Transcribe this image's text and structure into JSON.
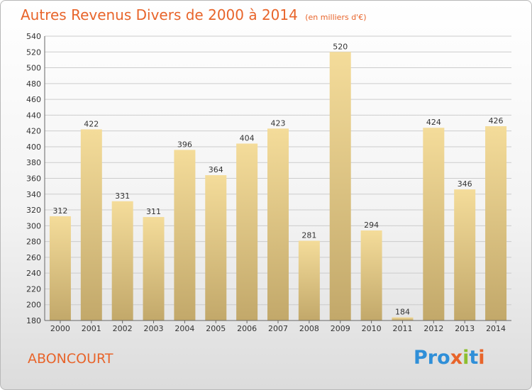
{
  "header": {
    "title": "Autres Revenus Divers de 2000 à 2014",
    "unit": "(en milliers d'€)"
  },
  "footer": {
    "place": "ABONCOURT",
    "logo": "Proxiti",
    "logo_colors": [
      "#2f8fd8",
      "#2f8fd8",
      "#2f8fd8",
      "#e8642a",
      "#8dbf2e",
      "#2f8fd8",
      "#e8642a"
    ]
  },
  "colors": {
    "accent": "#e8642a",
    "bar_light": "#f4dc9a",
    "bar_dark": "#c2a86a",
    "grid": "#cccccc"
  },
  "chart_data": {
    "type": "bar",
    "title": "Autres Revenus Divers de 2000 à 2014",
    "unit": "(en milliers d'€)",
    "categories": [
      "2000",
      "2001",
      "2002",
      "2003",
      "2004",
      "2005",
      "2006",
      "2007",
      "2008",
      "2009",
      "2010",
      "2011",
      "2012",
      "2013",
      "2014"
    ],
    "values": [
      312,
      422,
      331,
      311,
      396,
      364,
      404,
      423,
      281,
      520,
      294,
      184,
      424,
      346,
      426
    ],
    "ylim": [
      180,
      540
    ],
    "ytick_step": 20,
    "grid": true,
    "data_labels": true
  }
}
